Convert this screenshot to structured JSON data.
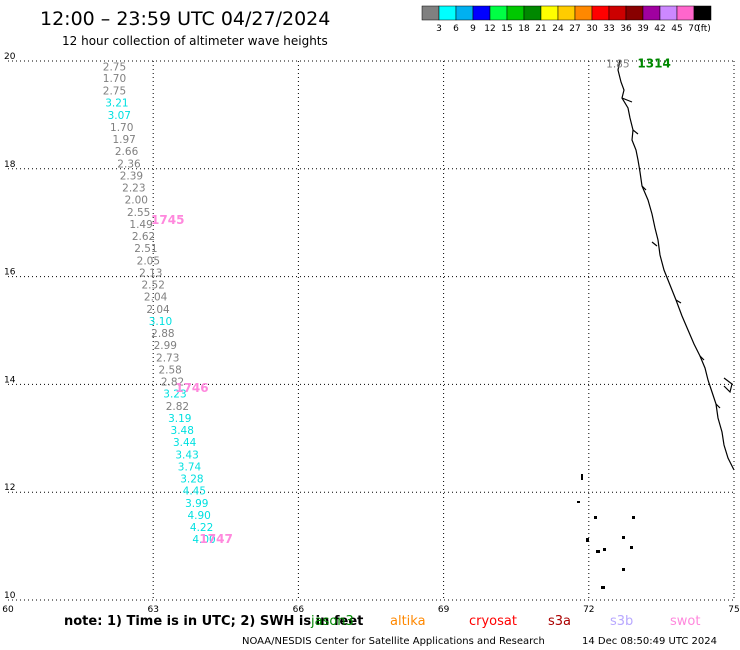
{
  "header": {
    "title": "12:00 – 23:59 UTC 04/27/2024",
    "subtitle": "12 hour collection of altimeter wave heights"
  },
  "color_scale": {
    "colors": [
      "#808080",
      "#00ffff",
      "#00b0f0",
      "#0000ff",
      "#00ff44",
      "#00c800",
      "#008800",
      "#ffff00",
      "#ffcc00",
      "#ff8800",
      "#ff0000",
      "#cc0000",
      "#880000",
      "#a000a0",
      "#cc88ff",
      "#ff66cc",
      "#000000"
    ],
    "labels": [
      "3",
      "6",
      "9",
      "12",
      "15",
      "18",
      "21",
      "24",
      "27",
      "30",
      "33",
      "36",
      "39",
      "42",
      "45",
      "70",
      "(ft)"
    ]
  },
  "chart_data": {
    "type": "scatter",
    "xlim": [
      60,
      75
    ],
    "ylim": [
      10,
      20
    ],
    "x_ticks": [
      "60",
      "63",
      "66",
      "69",
      "72",
      "75"
    ],
    "y_ticks": [
      "10",
      "12",
      "14",
      "16",
      "18",
      "20"
    ],
    "grid": true,
    "series": [
      {
        "points": [
          {
            "x": 62.2,
            "y": 19.9,
            "v": "2.75",
            "c": "#808080"
          },
          {
            "x": 62.2,
            "y": 19.68,
            "v": "1.70",
            "c": "#808080"
          },
          {
            "x": 62.2,
            "y": 19.45,
            "v": "2.75",
            "c": "#808080"
          },
          {
            "x": 62.25,
            "y": 19.23,
            "v": "3.21",
            "c": "#00e0e0"
          },
          {
            "x": 62.3,
            "y": 19.0,
            "v": "3.07",
            "c": "#00e0e0"
          },
          {
            "x": 62.35,
            "y": 18.78,
            "v": "1.70",
            "c": "#808080"
          },
          {
            "x": 62.4,
            "y": 18.55,
            "v": "1.97",
            "c": "#808080"
          },
          {
            "x": 62.45,
            "y": 18.33,
            "v": "2.66",
            "c": "#808080"
          },
          {
            "x": 62.5,
            "y": 18.1,
            "v": "2.36",
            "c": "#808080"
          },
          {
            "x": 62.55,
            "y": 17.88,
            "v": "2.39",
            "c": "#808080"
          },
          {
            "x": 62.6,
            "y": 17.65,
            "v": "2.23",
            "c": "#808080"
          },
          {
            "x": 62.65,
            "y": 17.43,
            "v": "2.00",
            "c": "#808080"
          },
          {
            "x": 62.7,
            "y": 17.2,
            "v": "2.55",
            "c": "#808080"
          },
          {
            "x": 62.75,
            "y": 16.98,
            "v": "1.49",
            "c": "#808080"
          },
          {
            "x": 62.8,
            "y": 16.75,
            "v": "2.62",
            "c": "#808080"
          },
          {
            "x": 62.85,
            "y": 16.53,
            "v": "2.51",
            "c": "#808080"
          },
          {
            "x": 62.9,
            "y": 16.3,
            "v": "2.05",
            "c": "#808080"
          },
          {
            "x": 62.95,
            "y": 16.08,
            "v": "2.13",
            "c": "#808080"
          },
          {
            "x": 63.0,
            "y": 15.85,
            "v": "2.52",
            "c": "#808080"
          },
          {
            "x": 63.05,
            "y": 15.63,
            "v": "2.04",
            "c": "#808080"
          },
          {
            "x": 63.1,
            "y": 15.4,
            "v": "2.04",
            "c": "#808080"
          },
          {
            "x": 63.15,
            "y": 15.18,
            "v": "3.10",
            "c": "#00e0e0"
          },
          {
            "x": 63.2,
            "y": 14.95,
            "v": "2.88",
            "c": "#808080"
          },
          {
            "x": 63.25,
            "y": 14.73,
            "v": "2.99",
            "c": "#808080"
          },
          {
            "x": 63.3,
            "y": 14.5,
            "v": "2.73",
            "c": "#808080"
          },
          {
            "x": 63.35,
            "y": 14.28,
            "v": "2.58",
            "c": "#808080"
          },
          {
            "x": 63.4,
            "y": 14.05,
            "v": "2.82",
            "c": "#808080"
          },
          {
            "x": 63.45,
            "y": 13.83,
            "v": "3.23",
            "c": "#00e0e0"
          },
          {
            "x": 63.5,
            "y": 13.6,
            "v": "2.82",
            "c": "#808080"
          },
          {
            "x": 63.55,
            "y": 13.38,
            "v": "3.19",
            "c": "#00e0e0"
          },
          {
            "x": 63.6,
            "y": 13.15,
            "v": "3.48",
            "c": "#00e0e0"
          },
          {
            "x": 63.65,
            "y": 12.93,
            "v": "3.44",
            "c": "#00e0e0"
          },
          {
            "x": 63.7,
            "y": 12.7,
            "v": "3.43",
            "c": "#00e0e0"
          },
          {
            "x": 63.75,
            "y": 12.48,
            "v": "3.74",
            "c": "#00e0e0"
          },
          {
            "x": 63.8,
            "y": 12.25,
            "v": "3.28",
            "c": "#00e0e0"
          },
          {
            "x": 63.85,
            "y": 12.03,
            "v": "4.45",
            "c": "#00e0e0"
          },
          {
            "x": 63.9,
            "y": 11.8,
            "v": "3.99",
            "c": "#00e0e0"
          },
          {
            "x": 63.95,
            "y": 11.58,
            "v": "4.90",
            "c": "#00e0e0"
          },
          {
            "x": 64.0,
            "y": 11.35,
            "v": "4.22",
            "c": "#00e0e0"
          },
          {
            "x": 64.05,
            "y": 11.13,
            "v": "4.00",
            "c": "#00e0e0"
          },
          {
            "x": 72.6,
            "y": 19.95,
            "v": "1.85",
            "c": "#808080"
          }
        ]
      }
    ],
    "pass_labels": [
      {
        "x": 63.3,
        "y": 17.05,
        "text": "1745",
        "c": "#ff88dd"
      },
      {
        "x": 63.8,
        "y": 13.93,
        "text": "1746",
        "c": "#ff88dd"
      },
      {
        "x": 64.3,
        "y": 11.13,
        "text": "1747",
        "c": "#ff88dd"
      },
      {
        "x": 73.35,
        "y": 19.95,
        "text": "1314",
        "c": "#008800"
      }
    ]
  },
  "legend": {
    "note": "note:  1) Time is in UTC;  2) SWH is in feet",
    "missions": [
      {
        "name": "jason3",
        "color": "#008800"
      },
      {
        "name": "altika",
        "color": "#ff8800"
      },
      {
        "name": "cryosat",
        "color": "#ff0000"
      },
      {
        "name": "s3a",
        "color": "#aa0000"
      },
      {
        "name": "s3b",
        "color": "#b8a8ff"
      },
      {
        "name": "swot",
        "color": "#ff88dd"
      }
    ]
  },
  "footer": {
    "credit": "NOAA/NESDIS Center for Satellite Applications and Research",
    "timestamp": "14 Dec 08:50:49 UTC 2024"
  }
}
